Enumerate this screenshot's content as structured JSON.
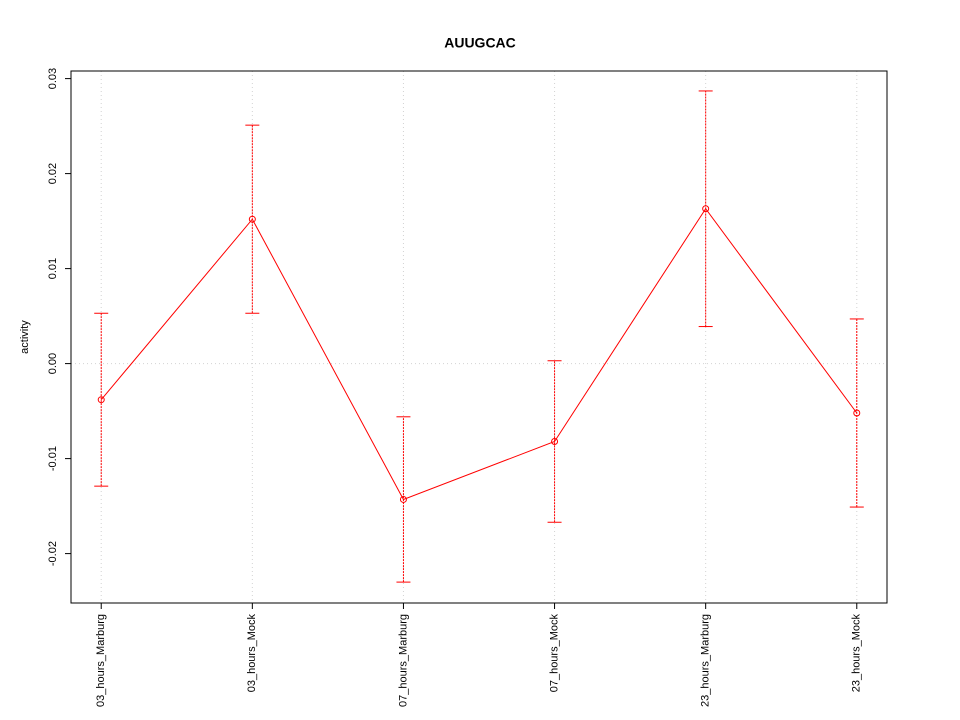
{
  "chart_data": {
    "type": "line",
    "title": "AUUGCAC",
    "y_label": "activity",
    "categories": [
      "03_hours_Marburg",
      "03_hours_Mock",
      "07_hours_Marburg",
      "07_hours_Mock",
      "23_hours_Marburg",
      "23_hours_Mock"
    ],
    "series": [
      {
        "color": "#ff0000",
        "values": [
          -0.0038,
          0.0152,
          -0.0143,
          -0.0082,
          0.0163,
          -0.0052
        ],
        "errors": [
          0.0091,
          0.0099,
          0.0087,
          0.0085,
          0.0124,
          0.0099
        ]
      }
    ],
    "xlim": [
      0.8,
      6.2
    ],
    "ylim": [
      -0.0252,
      0.0308
    ],
    "yticks": [
      -0.02,
      -0.01,
      {
        "value": 0,
        "label": "0.00"
      },
      0.01,
      0.02,
      0.03
    ],
    "grid": true,
    "reference_line": 0
  }
}
